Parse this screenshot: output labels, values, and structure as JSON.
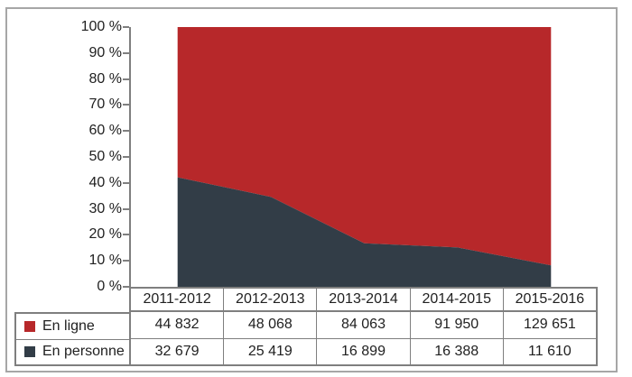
{
  "figure": {
    "background": "#ffffff",
    "border_color": "#a6a6a6",
    "axis_color": "#7f7f7f",
    "table_border_color": "#7f7f7f",
    "text_color": "#212121"
  },
  "chart_data": {
    "type": "area",
    "stacking": "percent",
    "title": "",
    "xlabel": "",
    "ylabel": "",
    "ylim": [
      0,
      100
    ],
    "grid": false,
    "legend_position": "data-table-left",
    "categories": [
      "2011-2012",
      "2012-2013",
      "2013-2014",
      "2014-2015",
      "2015-2016"
    ],
    "yticks": [
      "0 %",
      "10 %",
      "20 %",
      "30 %",
      "40 %",
      "50 %",
      "60 %",
      "70 %",
      "80 %",
      "90 %",
      "100 %"
    ],
    "series": [
      {
        "name": "En ligne",
        "color": "#b7282a",
        "values": [
          44832,
          48068,
          84063,
          91950,
          129651
        ]
      },
      {
        "name": "En personne",
        "color": "#323d47",
        "values": [
          32679,
          25419,
          16899,
          16388,
          11610
        ]
      }
    ],
    "percent_en_personne": [
      42.2,
      34.6,
      16.7,
      15.1,
      8.2
    ]
  },
  "table": {
    "rows": [
      {
        "label": "En ligne",
        "swatch_color": "#b7282a",
        "values": [
          "44 832",
          "48 068",
          "84 063",
          "91 950",
          "129 651"
        ]
      },
      {
        "label": "En personne",
        "swatch_color": "#323d47",
        "values": [
          "32 679",
          "25 419",
          "16 899",
          "16 388",
          "11 610"
        ]
      }
    ]
  }
}
